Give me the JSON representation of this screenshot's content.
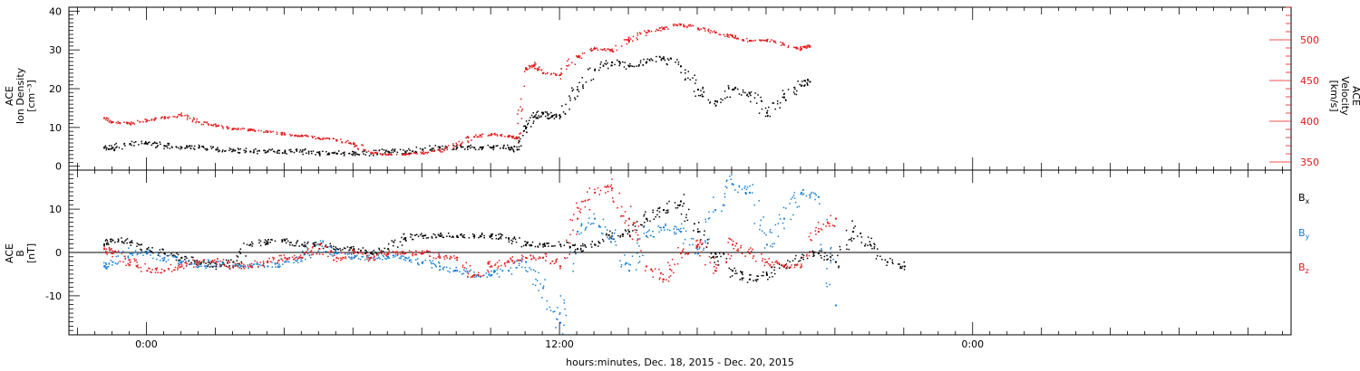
{
  "chart_data": [
    {
      "type": "scatter",
      "panel": "top",
      "ylabel_left": [
        "ACE",
        "Ion Density",
        "[cm⁻³]"
      ],
      "ylabel_right": [
        "ACE",
        "Velocity",
        "[km/s]"
      ],
      "y_left_ticks": [
        "0",
        "10",
        "20",
        "30",
        "40"
      ],
      "y_left_range": [
        -1,
        41
      ],
      "y_right_ticks": [
        "350",
        "400",
        "450",
        "500"
      ],
      "y_right_range": [
        340,
        540
      ],
      "series": [
        {
          "label": "density",
          "color": "#000000",
          "axis": "left",
          "points": [
            [
              -2.5,
              5
            ],
            [
              -2,
              5
            ],
            [
              -1,
              6
            ],
            [
              0,
              6
            ],
            [
              1,
              5.5
            ],
            [
              2,
              5
            ],
            [
              3,
              5
            ],
            [
              4,
              4.5
            ],
            [
              5,
              4.5
            ],
            [
              6,
              4
            ],
            [
              7,
              4
            ],
            [
              8,
              4
            ],
            [
              9,
              4
            ],
            [
              10,
              3.5
            ],
            [
              11,
              3.5
            ],
            [
              12,
              3.5
            ],
            [
              13,
              3.5
            ],
            [
              14,
              4
            ],
            [
              15,
              4
            ],
            [
              16,
              4.5
            ],
            [
              17,
              5
            ],
            [
              18,
              5
            ],
            [
              19,
              5
            ],
            [
              20,
              5
            ],
            [
              21,
              5
            ],
            [
              21.5,
              4.5
            ],
            [
              22,
              10
            ],
            [
              22.5,
              13
            ],
            [
              23,
              14
            ],
            [
              23.5,
              13
            ],
            [
              24,
              13
            ],
            [
              25,
              20
            ],
            [
              26,
              25
            ],
            [
              27,
              27
            ],
            [
              28,
              26
            ],
            [
              29,
              27
            ],
            [
              30,
              28
            ],
            [
              31,
              26
            ],
            [
              32,
              20
            ],
            [
              33,
              17
            ],
            [
              34,
              20
            ],
            [
              35,
              19
            ],
            [
              36,
              14
            ],
            [
              37,
              18
            ],
            [
              38,
              21
            ],
            [
              38.5,
              22
            ]
          ]
        },
        {
          "label": "velocity",
          "color": "#e31a1c",
          "axis": "right",
          "points": [
            [
              -2.5,
              405
            ],
            [
              -2,
              400
            ],
            [
              -1,
              398
            ],
            [
              0,
              402
            ],
            [
              1,
              405
            ],
            [
              2,
              408
            ],
            [
              3,
              400
            ],
            [
              4,
              395
            ],
            [
              5,
              392
            ],
            [
              6,
              390
            ],
            [
              7,
              388
            ],
            [
              8,
              385
            ],
            [
              9,
              383
            ],
            [
              10,
              380
            ],
            [
              11,
              378
            ],
            [
              12,
              373
            ],
            [
              13,
              362
            ],
            [
              14,
              360
            ],
            [
              15,
              360
            ],
            [
              16,
              362
            ],
            [
              17,
              365
            ],
            [
              18,
              372
            ],
            [
              19,
              382
            ],
            [
              20,
              385
            ],
            [
              21,
              383
            ],
            [
              21.5,
              380
            ],
            [
              22,
              465
            ],
            [
              22.5,
              470
            ],
            [
              23,
              460
            ],
            [
              24,
              458
            ],
            [
              25,
              480
            ],
            [
              26,
              490
            ],
            [
              27,
              488
            ],
            [
              28,
              500
            ],
            [
              29,
              510
            ],
            [
              30,
              515
            ],
            [
              31,
              520
            ],
            [
              32,
              515
            ],
            [
              33,
              510
            ],
            [
              34,
              505
            ],
            [
              35,
              500
            ],
            [
              36,
              500
            ],
            [
              37,
              495
            ],
            [
              38,
              490
            ],
            [
              38.5,
              493
            ]
          ]
        }
      ]
    },
    {
      "type": "scatter",
      "panel": "bottom",
      "ylabel_left": [
        "ACE",
        "B",
        "[nT]"
      ],
      "y_ticks": [
        "-10",
        "0",
        "10"
      ],
      "y_range": [
        -19,
        19
      ],
      "legend": [
        "B",
        "B",
        "B"
      ],
      "legend_sub": [
        "x",
        "y",
        "z"
      ],
      "legend_colors": [
        "#000000",
        "#1a7fd4",
        "#e31a1c"
      ],
      "series": [
        {
          "label": "Bx",
          "color": "#000000",
          "points": [
            [
              -2.5,
              2
            ],
            [
              -2,
              3
            ],
            [
              -1,
              2.5
            ],
            [
              0,
              1
            ],
            [
              1,
              0
            ],
            [
              2,
              -1
            ],
            [
              3,
              -2
            ],
            [
              4,
              -3
            ],
            [
              5,
              -2
            ],
            [
              6,
              2
            ],
            [
              7,
              2.5
            ],
            [
              8,
              3
            ],
            [
              9,
              2
            ],
            [
              10,
              2
            ],
            [
              11,
              1
            ],
            [
              12,
              1
            ],
            [
              13,
              0
            ],
            [
              14,
              1
            ],
            [
              15,
              3.5
            ],
            [
              16,
              4
            ],
            [
              17,
              4
            ],
            [
              18,
              4
            ],
            [
              19,
              4
            ],
            [
              20,
              4
            ],
            [
              21,
              3.5
            ],
            [
              22,
              2
            ],
            [
              23,
              2
            ],
            [
              24,
              2
            ],
            [
              25,
              1
            ],
            [
              26,
              2
            ],
            [
              27,
              4
            ],
            [
              28,
              5
            ],
            [
              29,
              8
            ],
            [
              30,
              10
            ],
            [
              31,
              12
            ],
            [
              32,
              5
            ],
            [
              33,
              0
            ],
            [
              34,
              -4
            ],
            [
              35,
              -6
            ],
            [
              36,
              -5
            ],
            [
              37,
              -3
            ],
            [
              38,
              -1
            ],
            [
              39,
              0
            ],
            [
              40,
              -2
            ],
            [
              41,
              5
            ],
            [
              42,
              2
            ],
            [
              43,
              -2
            ],
            [
              44,
              -3
            ]
          ]
        },
        {
          "label": "By",
          "color": "#1a7fd4",
          "points": [
            [
              -2.5,
              -3
            ],
            [
              -2,
              -2
            ],
            [
              -1,
              0
            ],
            [
              0,
              0
            ],
            [
              1,
              -1
            ],
            [
              2,
              -2
            ],
            [
              3,
              -3
            ],
            [
              4,
              -2
            ],
            [
              5,
              -3
            ],
            [
              6,
              -3
            ],
            [
              7,
              -3
            ],
            [
              8,
              -2
            ],
            [
              9,
              -1
            ],
            [
              10,
              2
            ],
            [
              11,
              0
            ],
            [
              12,
              -1
            ],
            [
              13,
              -1
            ],
            [
              14,
              -1
            ],
            [
              15,
              -1
            ],
            [
              16,
              -2
            ],
            [
              17,
              -3
            ],
            [
              18,
              -4
            ],
            [
              19,
              -5
            ],
            [
              20,
              -5
            ],
            [
              21,
              -4
            ],
            [
              22,
              -2
            ],
            [
              23,
              -8
            ],
            [
              24,
              -16
            ],
            [
              25,
              5
            ],
            [
              26,
              8
            ],
            [
              27,
              4
            ],
            [
              28,
              -4
            ],
            [
              29,
              4
            ],
            [
              30,
              6
            ],
            [
              31,
              5
            ],
            [
              32,
              0
            ],
            [
              33,
              10
            ],
            [
              34,
              16
            ],
            [
              35,
              14
            ],
            [
              36,
              2
            ],
            [
              37,
              8
            ],
            [
              38,
              14
            ],
            [
              39,
              13
            ],
            [
              40,
              -12
            ]
          ]
        },
        {
          "label": "Bz",
          "color": "#e31a1c",
          "points": [
            [
              -2.5,
              1
            ],
            [
              -2,
              0
            ],
            [
              -1,
              -2
            ],
            [
              0,
              -4
            ],
            [
              1,
              -4
            ],
            [
              2,
              -3
            ],
            [
              3,
              -2
            ],
            [
              4,
              -2
            ],
            [
              5,
              -3
            ],
            [
              6,
              -3
            ],
            [
              7,
              -2
            ],
            [
              8,
              -1
            ],
            [
              9,
              -1
            ],
            [
              10,
              1
            ],
            [
              11,
              -1
            ],
            [
              12,
              0
            ],
            [
              13,
              -1
            ],
            [
              14,
              0
            ],
            [
              15,
              0
            ],
            [
              16,
              0
            ],
            [
              17,
              -1
            ],
            [
              18,
              -1
            ],
            [
              19,
              -5
            ],
            [
              20,
              -3
            ],
            [
              21,
              -2
            ],
            [
              22,
              -1
            ],
            [
              23,
              -1
            ],
            [
              24,
              -3
            ],
            [
              25,
              8
            ],
            [
              26,
              14
            ],
            [
              27,
              15
            ],
            [
              28,
              8
            ],
            [
              29,
              -3
            ],
            [
              30,
              -6
            ],
            [
              31,
              0
            ],
            [
              32,
              2
            ],
            [
              33,
              -4
            ],
            [
              34,
              2
            ],
            [
              35,
              0
            ],
            [
              36,
              -2
            ],
            [
              37,
              -3
            ],
            [
              38,
              -3
            ],
            [
              39,
              5
            ],
            [
              40,
              8
            ]
          ]
        }
      ]
    },
    {
      "type": "axis",
      "x_range": [
        -4.5,
        66.5
      ],
      "x_tick_labels": [
        {
          "x": 0,
          "label": "0:00"
        },
        {
          "x": 24,
          "label": "12:00"
        },
        {
          "x": 48,
          "label": "0:00"
        }
      ],
      "xlabel": "hours:minutes, Dec. 18, 2015 - Dec. 20, 2015"
    }
  ]
}
